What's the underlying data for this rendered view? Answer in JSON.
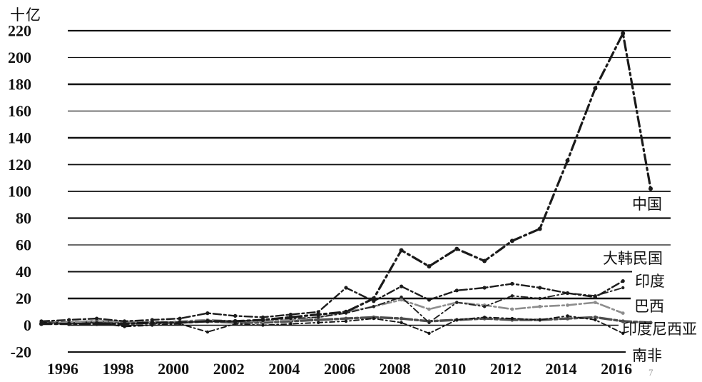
{
  "figure": {
    "unit_label": "十亿",
    "watermark": "7"
  },
  "chart_data": {
    "type": "line",
    "title": "",
    "ylabel": "十亿",
    "xlabel": "",
    "grid": true,
    "legend_position": "inline-right",
    "ylim": [
      -20,
      220
    ],
    "y_ticks": [
      220,
      200,
      180,
      160,
      140,
      120,
      100,
      80,
      60,
      40,
      20,
      0,
      -20
    ],
    "x_years": [
      1995,
      1996,
      1997,
      1998,
      1999,
      2000,
      2001,
      2002,
      2003,
      2004,
      2005,
      2006,
      2007,
      2008,
      2009,
      2010,
      2011,
      2012,
      2013,
      2014,
      2015,
      2016,
      2017
    ],
    "x_tick_labels": [
      "1996",
      "1998",
      "2000",
      "2002",
      "2004",
      "2006",
      "2008",
      "2010",
      "2012",
      "2014",
      "2016"
    ],
    "series": [
      {
        "name": "中国",
        "color": "#1a1a1a",
        "values": [
          1,
          1,
          1,
          1,
          2,
          2,
          3,
          3,
          4,
          6,
          8,
          10,
          20,
          56,
          44,
          57,
          48,
          63,
          72,
          123,
          177,
          218,
          102
        ]
      },
      {
        "name": "大韩民国",
        "color": "#1c1c1c",
        "values": [
          3,
          4,
          5,
          3,
          4,
          5,
          9,
          7,
          6,
          8,
          10,
          28,
          18,
          29,
          19,
          26,
          28,
          31,
          28,
          24,
          21,
          33,
          null
        ]
      },
      {
        "name": "印度",
        "color": "#222222",
        "values": [
          1,
          1,
          2,
          1,
          1,
          2,
          3,
          3,
          4,
          5,
          6,
          9,
          14,
          21,
          2,
          17,
          14,
          22,
          20,
          24,
          22,
          28,
          null
        ]
      },
      {
        "name": "巴西",
        "color": "#8d8d8d",
        "values": [
          1,
          2,
          3,
          3,
          2,
          3,
          4,
          3,
          3,
          4,
          6,
          10,
          14,
          19,
          12,
          17,
          15,
          12,
          14,
          15,
          17,
          9,
          null
        ]
      },
      {
        "name": "印度尼西亚",
        "color": "#151515",
        "values": [
          2,
          2,
          2,
          -1,
          0,
          1,
          -5,
          1,
          0,
          1,
          2,
          3,
          5,
          2,
          -6,
          4,
          6,
          5,
          4,
          7,
          4,
          -6,
          null
        ]
      },
      {
        "name": "南非",
        "color": "#4d4d4d",
        "values": [
          2,
          2,
          3,
          2,
          2,
          2,
          3,
          2,
          2,
          3,
          4,
          5,
          6,
          5,
          3,
          4,
          5,
          4,
          4,
          5,
          6,
          3,
          2
        ]
      }
    ]
  }
}
